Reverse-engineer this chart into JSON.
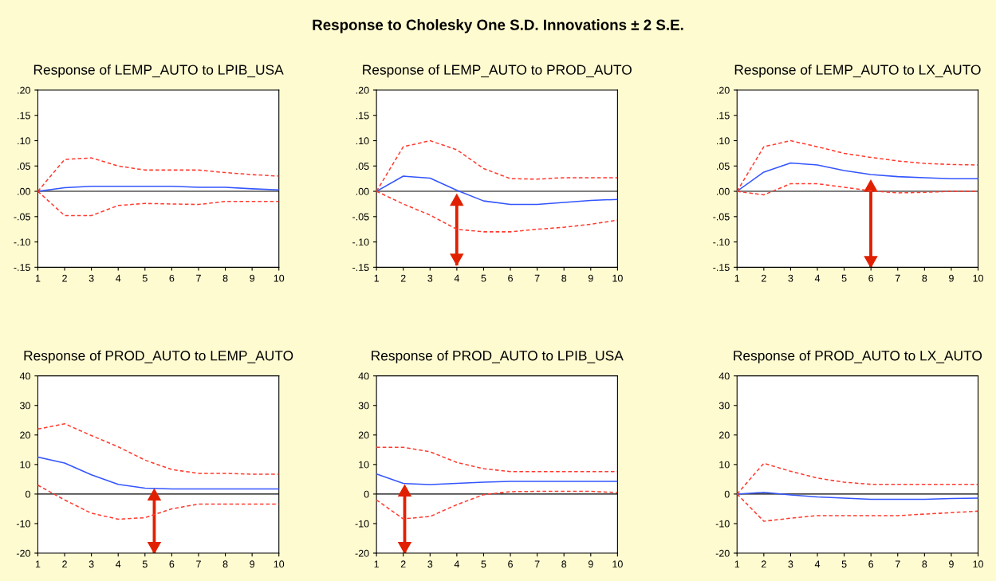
{
  "chart_data": [
    {
      "type": "line",
      "title": "Response of LEMP_AUTO to LPIB_USA",
      "annotations": [
        "Response to Cholesky One S.D. Innovations ± 2 S.E."
      ],
      "x": [
        1,
        2,
        3,
        4,
        5,
        6,
        7,
        8,
        9,
        10
      ],
      "xlim": [
        1,
        10
      ],
      "xticks": [
        1,
        2,
        3,
        4,
        5,
        6,
        7,
        8,
        9,
        10
      ],
      "ylim": [
        -0.15,
        0.2
      ],
      "yticks": [
        {
          "value": -0.15,
          "label": "-.15"
        },
        {
          "value": -0.1,
          "label": "-.10"
        },
        {
          "value": -0.05,
          "label": "-.05"
        },
        {
          "value": 0,
          "label": ".00"
        },
        {
          "value": 0.05,
          "label": ".05"
        },
        {
          "value": 0.1,
          "label": ".10"
        },
        {
          "value": 0.15,
          "label": ".15"
        },
        {
          "value": 0.2,
          "label": ".20"
        }
      ],
      "grid": false,
      "ref_lines": [
        {
          "axis": "y",
          "value": 0,
          "color": "#000000"
        }
      ],
      "series": [
        {
          "color": "#3355ff",
          "line_style": "solid",
          "values": [
            0,
            0.007,
            0.01,
            0.01,
            0.01,
            0.01,
            0.008,
            0.008,
            0.005,
            0.003
          ]
        },
        {
          "color": "#ff3b2f",
          "line_style": "dashed",
          "values": [
            0,
            0.063,
            0.066,
            0.05,
            0.042,
            0.042,
            0.042,
            0.037,
            0.033,
            0.03
          ]
        },
        {
          "color": "#ff3b2f",
          "line_style": "dashed",
          "values": [
            0,
            -0.048,
            -0.048,
            -0.028,
            -0.024,
            -0.025,
            -0.026,
            -0.02,
            -0.02,
            -0.02
          ]
        }
      ]
    },
    {
      "type": "line",
      "title": "Response of LEMP_AUTO to PROD_AUTO",
      "x": [
        1,
        2,
        3,
        4,
        5,
        6,
        7,
        8,
        9,
        10
      ],
      "xlim": [
        1,
        10
      ],
      "xticks": [
        1,
        2,
        3,
        4,
        5,
        6,
        7,
        8,
        9,
        10
      ],
      "ylim": [
        -0.15,
        0.2
      ],
      "yticks": [
        {
          "value": -0.15,
          "label": "-.15"
        },
        {
          "value": -0.1,
          "label": "-.10"
        },
        {
          "value": -0.05,
          "label": "-.05"
        },
        {
          "value": 0,
          "label": ".00"
        },
        {
          "value": 0.05,
          "label": ".05"
        },
        {
          "value": 0.1,
          "label": ".10"
        },
        {
          "value": 0.15,
          "label": ".15"
        },
        {
          "value": 0.2,
          "label": ".20"
        }
      ],
      "grid": false,
      "ref_lines": [
        {
          "axis": "y",
          "value": 0,
          "color": "#000000"
        }
      ],
      "series": [
        {
          "color": "#3355ff",
          "line_style": "solid",
          "values": [
            0,
            0.03,
            0.026,
            0.002,
            -0.019,
            -0.026,
            -0.026,
            -0.022,
            -0.018,
            -0.016
          ]
        },
        {
          "color": "#ff3b2f",
          "line_style": "dashed",
          "values": [
            0,
            0.088,
            0.1,
            0.082,
            0.045,
            0.025,
            0.024,
            0.027,
            0.027,
            0.027
          ]
        },
        {
          "color": "#ff3b2f",
          "line_style": "dashed",
          "values": [
            0,
            -0.025,
            -0.047,
            -0.075,
            -0.08,
            -0.08,
            -0.075,
            -0.071,
            -0.065,
            -0.057
          ]
        }
      ]
    },
    {
      "type": "line",
      "title": "Response of LEMP_AUTO to LX_AUTO",
      "x": [
        1,
        2,
        3,
        4,
        5,
        6,
        7,
        8,
        9,
        10
      ],
      "xlim": [
        1,
        10
      ],
      "xticks": [
        1,
        2,
        3,
        4,
        5,
        6,
        7,
        8,
        9,
        10
      ],
      "ylim": [
        -0.15,
        0.2
      ],
      "yticks": [
        {
          "value": -0.15,
          "label": "-.15"
        },
        {
          "value": -0.1,
          "label": "-.10"
        },
        {
          "value": -0.05,
          "label": "-.05"
        },
        {
          "value": 0,
          "label": ".00"
        },
        {
          "value": 0.05,
          "label": ".05"
        },
        {
          "value": 0.1,
          "label": ".10"
        },
        {
          "value": 0.15,
          "label": ".15"
        },
        {
          "value": 0.2,
          "label": ".20"
        }
      ],
      "grid": false,
      "ref_lines": [
        {
          "axis": "y",
          "value": 0,
          "color": "#000000"
        }
      ],
      "series": [
        {
          "color": "#3355ff",
          "line_style": "solid",
          "values": [
            0,
            0.038,
            0.056,
            0.052,
            0.041,
            0.033,
            0.029,
            0.027,
            0.025,
            0.025
          ]
        },
        {
          "color": "#ff3b2f",
          "line_style": "dashed",
          "values": [
            0,
            0.088,
            0.1,
            0.088,
            0.075,
            0.067,
            0.06,
            0.055,
            0.053,
            0.052
          ]
        },
        {
          "color": "#ff3b2f",
          "line_style": "dashed",
          "values": [
            0,
            -0.007,
            0.015,
            0.015,
            0.008,
            0.001,
            -0.003,
            -0.002,
            0,
            0
          ]
        }
      ]
    },
    {
      "type": "line",
      "title": "Response of PROD_AUTO to LEMP_AUTO",
      "x": [
        1,
        2,
        3,
        4,
        5,
        6,
        7,
        8,
        9,
        10
      ],
      "xlim": [
        1,
        10
      ],
      "xticks": [
        1,
        2,
        3,
        4,
        5,
        6,
        7,
        8,
        9,
        10
      ],
      "ylim": [
        -20,
        40
      ],
      "yticks": [
        -20,
        -10,
        0,
        10,
        20,
        30,
        40
      ],
      "grid": false,
      "ref_lines": [
        {
          "axis": "y",
          "value": 0,
          "color": "#000000"
        }
      ],
      "series": [
        {
          "color": "#3355ff",
          "line_style": "solid",
          "values": [
            12.5,
            10.5,
            6.5,
            3.3,
            2,
            1.7,
            1.7,
            1.7,
            1.7,
            1.7
          ]
        },
        {
          "color": "#ff3b2f",
          "line_style": "dashed",
          "values": [
            22,
            23.8,
            19.8,
            16,
            11.5,
            8.3,
            7,
            7,
            6.7,
            6.7
          ]
        },
        {
          "color": "#ff3b2f",
          "line_style": "dashed",
          "values": [
            3,
            -2,
            -6.5,
            -8.5,
            -8,
            -5,
            -3.4,
            -3.4,
            -3.4,
            -3.4
          ]
        }
      ]
    },
    {
      "type": "line",
      "title": "Response of PROD_AUTO to LPIB_USA",
      "x": [
        1,
        2,
        3,
        4,
        5,
        6,
        7,
        8,
        9,
        10
      ],
      "xlim": [
        1,
        10
      ],
      "xticks": [
        1,
        2,
        3,
        4,
        5,
        6,
        7,
        8,
        9,
        10
      ],
      "ylim": [
        -20,
        40
      ],
      "yticks": [
        -20,
        -10,
        0,
        10,
        20,
        30,
        40
      ],
      "grid": false,
      "ref_lines": [
        {
          "axis": "y",
          "value": 0,
          "color": "#000000"
        }
      ],
      "series": [
        {
          "color": "#3355ff",
          "line_style": "solid",
          "values": [
            6.8,
            3.6,
            3.2,
            3.6,
            4,
            4.3,
            4.3,
            4.3,
            4.3,
            4.3
          ]
        },
        {
          "color": "#ff3b2f",
          "line_style": "dashed",
          "values": [
            15.8,
            15.8,
            14.3,
            10.7,
            8.6,
            7.6,
            7.6,
            7.6,
            7.6,
            7.6
          ]
        },
        {
          "color": "#ff3b2f",
          "line_style": "dashed",
          "values": [
            -2,
            -8.4,
            -7.6,
            -3.6,
            -0.2,
            0.8,
            0.9,
            0.9,
            0.9,
            0.5
          ]
        }
      ]
    },
    {
      "type": "line",
      "title": "Response of PROD_AUTO to LX_AUTO",
      "x": [
        1,
        2,
        3,
        4,
        5,
        6,
        7,
        8,
        9,
        10
      ],
      "xlim": [
        1,
        10
      ],
      "xticks": [
        1,
        2,
        3,
        4,
        5,
        6,
        7,
        8,
        9,
        10
      ],
      "ylim": [
        -20,
        40
      ],
      "yticks": [
        -20,
        -10,
        0,
        10,
        20,
        30,
        40
      ],
      "grid": false,
      "ref_lines": [
        {
          "axis": "y",
          "value": 0,
          "color": "#000000"
        }
      ],
      "series": [
        {
          "color": "#3355ff",
          "line_style": "solid",
          "values": [
            0,
            0.6,
            -0.3,
            -1,
            -1.4,
            -1.8,
            -1.8,
            -1.8,
            -1.5,
            -1.4
          ]
        },
        {
          "color": "#ff3b2f",
          "line_style": "dashed",
          "values": [
            0,
            10.4,
            7.7,
            5.4,
            4,
            3.3,
            3.3,
            3.3,
            3.3,
            3.3
          ]
        },
        {
          "color": "#ff3b2f",
          "line_style": "dashed",
          "values": [
            0,
            -9.2,
            -8.2,
            -7.3,
            -7.3,
            -7.3,
            -7.3,
            -6.8,
            -6.3,
            -5.8
          ]
        }
      ]
    }
  ]
}
